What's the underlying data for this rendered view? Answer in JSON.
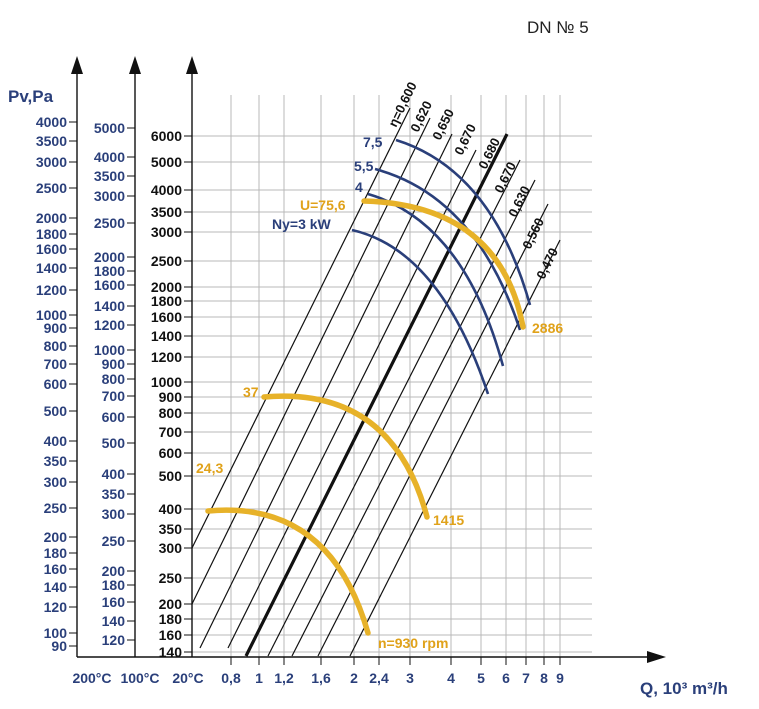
{
  "chart_data": {
    "type": "line",
    "title": "DN № 5",
    "ylabel": "Pv,Pa",
    "xlabel": "Q, 10³ m³/h",
    "colors": {
      "axis_blue": "#2a3f7a",
      "curve_orange": "#e7b229",
      "power_blue": "#2a3f7a",
      "grid": "#b8b8b8",
      "lines": "#111111"
    },
    "x_ticks_q": [
      "0,8",
      "1",
      "1,2",
      "1,6",
      "2",
      "2,4",
      "3",
      "4",
      "5",
      "6",
      "7",
      "8",
      "9"
    ],
    "x_temp_labels": [
      "200°C",
      "100°C",
      "20°C"
    ],
    "y_axis_200c": [
      "4000",
      "3500",
      "3000",
      "2500",
      "2000",
      "1800",
      "1600",
      "1400",
      "1200",
      "1000",
      "900",
      "800",
      "700",
      "600",
      "500",
      "400",
      "350",
      "300",
      "250",
      "200",
      "180",
      "160",
      "140",
      "120",
      "100",
      "90"
    ],
    "y_axis_100c": [
      "5000",
      "4000",
      "3500",
      "3000",
      "2500",
      "2000",
      "1800",
      "1600",
      "1400",
      "1200",
      "1000",
      "900",
      "800",
      "700",
      "600",
      "500",
      "400",
      "350",
      "300",
      "250",
      "200",
      "180",
      "160",
      "140",
      "120"
    ],
    "y_axis_20c": [
      "6000",
      "5000",
      "4000",
      "3500",
      "3000",
      "2500",
      "2000",
      "1800",
      "1600",
      "1400",
      "1200",
      "1000",
      "900",
      "800",
      "700",
      "600",
      "500",
      "400",
      "350",
      "300",
      "250",
      "200",
      "180",
      "160",
      "140"
    ],
    "efficiency_lines": [
      "η=0,600",
      "0,620",
      "0,650",
      "0,670",
      "0,680",
      "0,670",
      "0,630",
      "0,560",
      "0,470"
    ],
    "speed_curves": [
      {
        "name": "n=930 rpm",
        "start_label": "24,3"
      },
      {
        "name": "1415",
        "start_label": "37"
      },
      {
        "name": "2886",
        "start_label": "U=75,6"
      }
    ],
    "power_curves": [
      "Ny=3 kW",
      "4",
      "5,5",
      "7,5"
    ]
  }
}
